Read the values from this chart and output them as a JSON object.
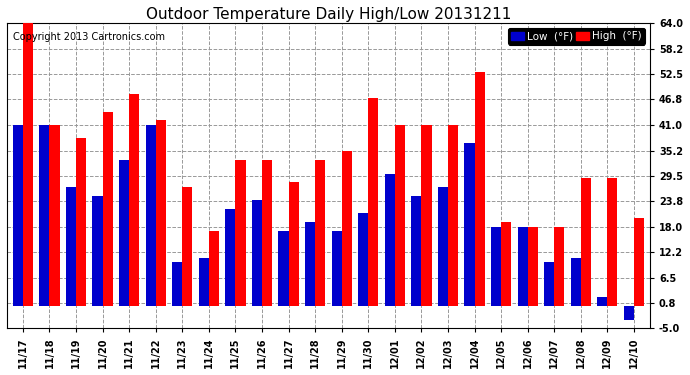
{
  "title": "Outdoor Temperature Daily High/Low 20131211",
  "copyright": "Copyright 2013 Cartronics.com",
  "dates": [
    "11/17",
    "11/18",
    "11/19",
    "11/20",
    "11/21",
    "11/22",
    "11/23",
    "11/24",
    "11/25",
    "11/26",
    "11/27",
    "11/28",
    "11/29",
    "11/30",
    "12/01",
    "12/02",
    "12/03",
    "12/04",
    "12/05",
    "12/06",
    "12/07",
    "12/08",
    "12/09",
    "12/10"
  ],
  "high": [
    64,
    41,
    38,
    44,
    48,
    42,
    27,
    17,
    33,
    33,
    28,
    33,
    35,
    47,
    41,
    41,
    41,
    53,
    19,
    18,
    18,
    29,
    29,
    20
  ],
  "low": [
    41,
    41,
    27,
    25,
    33,
    41,
    10,
    11,
    22,
    24,
    17,
    19,
    17,
    21,
    30,
    25,
    27,
    37,
    18,
    18,
    10,
    11,
    2,
    -3
  ],
  "high_color": "#ff0000",
  "low_color": "#0000cc",
  "bg_color": "#ffffff",
  "plot_bg": "#ffffff",
  "grid_color": "#999999",
  "ylim": [
    -5.0,
    64.0
  ],
  "yticks": [
    -5.0,
    0.8,
    6.5,
    12.2,
    18.0,
    23.8,
    29.5,
    35.2,
    41.0,
    46.8,
    52.5,
    58.2,
    64.0
  ],
  "legend_low_label": "Low  (°F)",
  "legend_high_label": "High  (°F)",
  "title_fontsize": 11,
  "copyright_fontsize": 7,
  "bar_width": 0.38
}
